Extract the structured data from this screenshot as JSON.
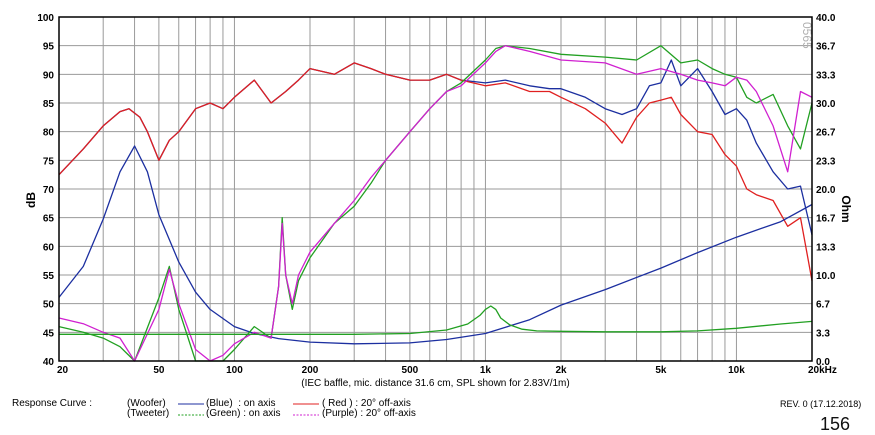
{
  "chart_data": {
    "type": "line",
    "x_scale": "log",
    "xlim": [
      20,
      20000
    ],
    "ylim_left": [
      40,
      100
    ],
    "ylim_right": [
      0,
      40
    ],
    "ylabel_left": "dB",
    "ylabel_right": "Ohm",
    "watermark": "0565",
    "caption": "(IEC baffle, mic. distance 31.6 cm, SPL shown for 2.83V/1m)",
    "grid": true,
    "x_ticks": [
      {
        "v": 20,
        "label": "20"
      },
      {
        "v": 50,
        "label": "50"
      },
      {
        "v": 100,
        "label": "100"
      },
      {
        "v": 200,
        "label": "200"
      },
      {
        "v": 500,
        "label": "500"
      },
      {
        "v": 1000,
        "label": "1k"
      },
      {
        "v": 2000,
        "label": "2k"
      },
      {
        "v": 5000,
        "label": "5k"
      },
      {
        "v": 10000,
        "label": "10k"
      },
      {
        "v": 20000,
        "label": "20kHz"
      }
    ],
    "y_ticks_left": [
      40,
      45,
      50,
      55,
      60,
      65,
      70,
      75,
      80,
      85,
      90,
      95,
      100
    ],
    "y_ticks_right": [
      "0.0",
      "3.3",
      "6.7",
      "10.0",
      "13.3",
      "16.7",
      "20.0",
      "23.3",
      "26.7",
      "30.0",
      "33.3",
      "36.7",
      "40.0"
    ],
    "series": [
      {
        "name": "Woofer Blue on axis",
        "color": "#1c2fa0",
        "axis": "left",
        "x": [
          20,
          25,
          30,
          35,
          38,
          42,
          45,
          50,
          55,
          60,
          70,
          80,
          90,
          100,
          120,
          140,
          160,
          180,
          200,
          250,
          300,
          350,
          400,
          500,
          600,
          700,
          800,
          1000,
          1200,
          1500,
          1800,
          2000,
          2500,
          3000,
          3500,
          4000,
          4500,
          5000,
          5500,
          6000,
          7000,
          8000,
          9000,
          10000,
          11000,
          12000,
          14000,
          16000,
          18000,
          20000
        ],
        "y": [
          72.5,
          77,
          81,
          83.5,
          84,
          82.5,
          80,
          75,
          78.5,
          80,
          84,
          85,
          84,
          86,
          89,
          85,
          87,
          89,
          91,
          90,
          92,
          91,
          90,
          89,
          89,
          90,
          89,
          88.5,
          89,
          88,
          87.5,
          87.5,
          86,
          84,
          83,
          84,
          88,
          88.5,
          92.5,
          88,
          91,
          87,
          83,
          84,
          82,
          78,
          73,
          70,
          70.5,
          62
        ]
      },
      {
        "name": "Woofer Red 20° off-axis",
        "color": "#e02020",
        "axis": "left",
        "x": [
          20,
          25,
          30,
          35,
          38,
          42,
          45,
          50,
          55,
          60,
          70,
          80,
          90,
          100,
          120,
          140,
          160,
          180,
          200,
          250,
          300,
          350,
          400,
          500,
          600,
          700,
          800,
          1000,
          1200,
          1500,
          1800,
          2000,
          2500,
          3000,
          3500,
          4000,
          4500,
          5000,
          5500,
          6000,
          7000,
          8000,
          9000,
          10000,
          11000,
          12000,
          14000,
          16000,
          18000,
          20000
        ],
        "y": [
          72.5,
          77,
          81,
          83.5,
          84,
          82.5,
          80,
          75,
          78.5,
          80,
          84,
          85,
          84,
          86,
          89,
          85,
          87,
          89,
          91,
          90,
          92,
          91,
          90,
          89,
          89,
          90,
          89,
          88,
          88.5,
          87,
          87,
          86,
          84,
          81.5,
          78,
          82.5,
          85,
          85.5,
          86,
          83,
          80,
          79.5,
          76,
          74,
          70,
          69,
          68,
          63.5,
          65,
          54
        ]
      },
      {
        "name": "Woofer impedance",
        "color": "#1c2fa0",
        "axis": "right",
        "x": [
          20,
          25,
          30,
          35,
          40,
          45,
          50,
          60,
          70,
          80,
          100,
          120,
          150,
          200,
          300,
          500,
          700,
          1000,
          1500,
          2000,
          3000,
          5000,
          7000,
          10000,
          15000,
          20000
        ],
        "y": [
          7.4,
          11,
          16.5,
          22,
          25,
          22,
          17,
          11.5,
          8,
          6,
          4,
          3.2,
          2.6,
          2.2,
          2.0,
          2.1,
          2.5,
          3.2,
          4.8,
          6.5,
          8.3,
          10.8,
          12.6,
          14.4,
          16.2,
          18.2
        ]
      },
      {
        "name": "Tweeter Green on axis",
        "color": "#22a022",
        "axis": "left",
        "x": [
          20,
          25,
          30,
          35,
          40,
          50,
          55,
          60,
          70,
          80,
          90,
          100,
          120,
          140,
          150,
          155,
          160,
          170,
          180,
          200,
          250,
          300,
          350,
          400,
          500,
          600,
          700,
          800,
          1000,
          1100,
          1200,
          1500,
          2000,
          3000,
          4000,
          5000,
          6000,
          7000,
          8000,
          9000,
          10000,
          11000,
          12000,
          14000,
          16000,
          18000,
          20000
        ],
        "y": [
          46,
          45,
          44,
          42.5,
          40,
          51,
          56.5,
          49,
          40,
          40,
          40,
          42,
          46,
          44,
          53,
          65,
          55,
          49,
          54,
          58,
          64,
          67,
          71,
          75,
          80,
          84,
          87,
          88.5,
          92.5,
          94.5,
          95,
          94.5,
          93.5,
          93,
          92.5,
          95,
          92,
          92.5,
          91,
          90,
          89.5,
          86,
          85,
          86.5,
          81,
          77,
          85
        ]
      },
      {
        "name": "Tweeter Purple 20° off-axis",
        "color": "#d020d0",
        "axis": "left",
        "x": [
          20,
          25,
          30,
          35,
          40,
          50,
          55,
          60,
          70,
          80,
          90,
          100,
          120,
          140,
          150,
          155,
          160,
          170,
          180,
          200,
          250,
          300,
          350,
          400,
          500,
          600,
          700,
          800,
          1000,
          1100,
          1200,
          1500,
          2000,
          3000,
          4000,
          5000,
          6000,
          7000,
          8000,
          9000,
          10000,
          11000,
          12000,
          14000,
          16000,
          18000,
          20000
        ],
        "y": [
          47.5,
          46.5,
          45,
          44,
          40,
          49,
          56,
          50,
          42,
          40,
          41,
          43,
          45,
          44,
          53,
          64,
          55,
          50,
          55,
          59,
          64,
          68,
          72,
          75,
          80,
          84,
          87,
          88,
          92,
          94,
          95,
          94,
          92.5,
          92,
          90,
          91,
          90,
          89,
          88.5,
          88,
          89.5,
          89,
          87,
          81,
          73,
          87,
          86
        ]
      },
      {
        "name": "Tweeter impedance",
        "color": "#22a022",
        "axis": "right",
        "x": [
          20,
          300,
          500,
          700,
          850,
          950,
          1000,
          1050,
          1100,
          1150,
          1250,
          1400,
          1600,
          2000,
          3000,
          5000,
          7000,
          10000,
          15000,
          20000
        ],
        "y": [
          3.1,
          3.1,
          3.2,
          3.6,
          4.3,
          5.3,
          6.0,
          6.4,
          6.0,
          5.0,
          4.2,
          3.7,
          3.5,
          3.45,
          3.4,
          3.4,
          3.5,
          3.8,
          4.3,
          4.6
        ]
      }
    ]
  },
  "footer": {
    "label": "Response Curve :",
    "woofer": "(Woofer)",
    "tweeter": "(Tweeter)",
    "blue": "(Blue)  : on axis",
    "green": "(Green) : on axis",
    "red": "( Red ) : 20° off-axis",
    "purple": "(Purple) : 20° off-axis",
    "revision": "REV. 0 (17.12.2018)",
    "page_number": "156"
  }
}
